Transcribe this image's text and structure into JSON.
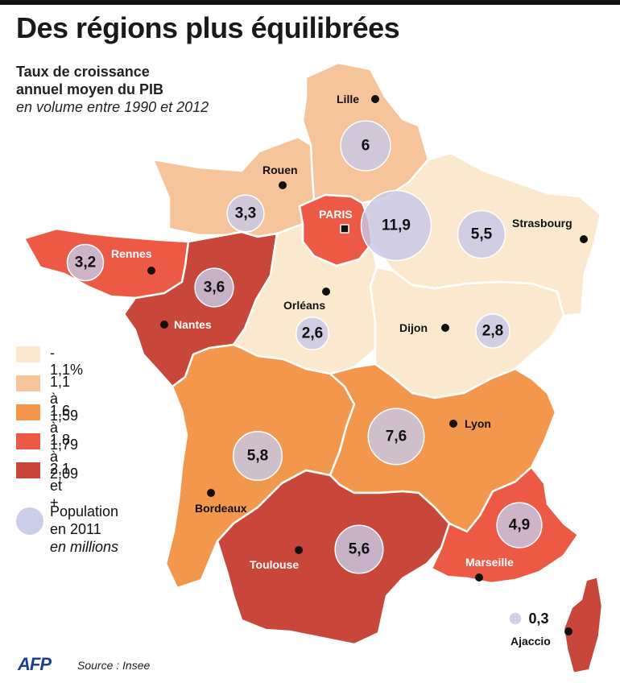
{
  "title": "Des régions plus équilibrées",
  "subtitle": {
    "line1": "Taux de croissance",
    "line2": "annuel moyen du PIB",
    "line3": "en volume entre 1990 et 2012"
  },
  "legend": {
    "classes": [
      {
        "label": "- 1,1%",
        "color": "#fbe9cf"
      },
      {
        "label": "1,1 à 1,59",
        "color": "#f6c49a"
      },
      {
        "label": "1,6 à 1,79",
        "color": "#f3974c"
      },
      {
        "label": "1,8 à 2,09",
        "color": "#ec5a46"
      },
      {
        "label": "2,1 et +",
        "color": "#c8473a"
      }
    ],
    "population": {
      "line1": "Population",
      "line2": "en 2011",
      "line3": "en millions",
      "color": "#c7c8e6"
    }
  },
  "regions": [
    {
      "name": "nord",
      "class": 1
    },
    {
      "name": "normandie",
      "class": 1
    },
    {
      "name": "ile-de-france",
      "class": 3
    },
    {
      "name": "est",
      "class": 0
    },
    {
      "name": "bretagne",
      "class": 3
    },
    {
      "name": "pays-de-la-loire",
      "class": 4
    },
    {
      "name": "centre",
      "class": 0
    },
    {
      "name": "bourgogne-franche-comte",
      "class": 0
    },
    {
      "name": "sud-ouest",
      "class": 2
    },
    {
      "name": "rhone-alpes",
      "class": 2
    },
    {
      "name": "sud",
      "class": 4
    },
    {
      "name": "paca",
      "class": 3
    },
    {
      "name": "corse",
      "class": 4
    }
  ],
  "cities": [
    {
      "name": "Lille"
    },
    {
      "name": "Rouen"
    },
    {
      "name": "PARIS"
    },
    {
      "name": "Strasbourg"
    },
    {
      "name": "Rennes"
    },
    {
      "name": "Nantes"
    },
    {
      "name": "Orléans"
    },
    {
      "name": "Dijon"
    },
    {
      "name": "Lyon"
    },
    {
      "name": "Bordeaux"
    },
    {
      "name": "Toulouse"
    },
    {
      "name": "Marseille"
    },
    {
      "name": "Ajaccio"
    }
  ],
  "population": [
    {
      "region": "nord",
      "value": 6,
      "label": "6"
    },
    {
      "region": "normandie",
      "value": 3.3,
      "label": "3,3"
    },
    {
      "region": "ile-de-france",
      "value": 11.9,
      "label": "11,9"
    },
    {
      "region": "est",
      "value": 5.5,
      "label": "5,5"
    },
    {
      "region": "bretagne",
      "value": 3.2,
      "label": "3,2"
    },
    {
      "region": "pays-de-la-loire",
      "value": 3.6,
      "label": "3,6"
    },
    {
      "region": "centre",
      "value": 2.6,
      "label": "2,6"
    },
    {
      "region": "bourgogne-franche-comte",
      "value": 2.8,
      "label": "2,8"
    },
    {
      "region": "rhone-alpes",
      "value": 7.6,
      "label": "7,6"
    },
    {
      "region": "sud-ouest",
      "value": 5.8,
      "label": "5,8"
    },
    {
      "region": "sud",
      "value": 5.6,
      "label": "5,6"
    },
    {
      "region": "paca",
      "value": 4.9,
      "label": "4,9"
    },
    {
      "region": "corse",
      "value": 0.3,
      "label": "0,3"
    }
  ],
  "footer": {
    "brand": "AFP",
    "source": "Source : Insee"
  }
}
